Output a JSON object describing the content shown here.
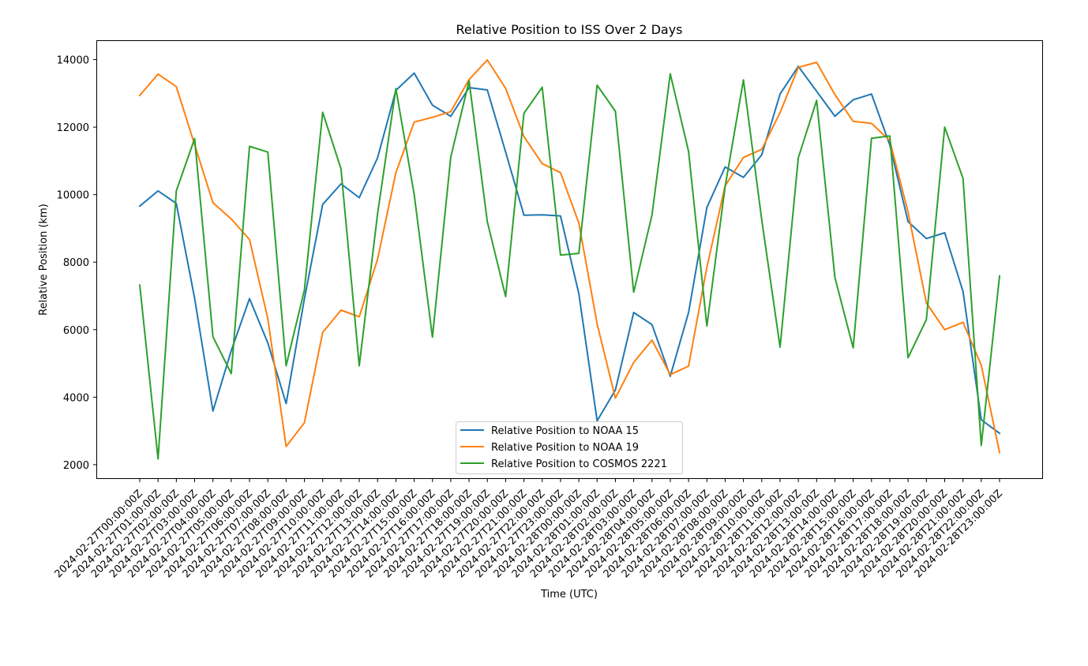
{
  "chart_data": {
    "type": "line",
    "title": "Relative Position to ISS Over 2 Days",
    "xlabel": "Time (UTC)",
    "ylabel": "Relative Position (km)",
    "ylim": [
      1600,
      14550
    ],
    "yticks": [
      2000,
      4000,
      6000,
      8000,
      10000,
      12000,
      14000
    ],
    "yticklabels": [
      "2000",
      "4000",
      "6000",
      "8000",
      "10000",
      "12000",
      "14000"
    ],
    "grid": false,
    "legend_position": "bottom-center",
    "categories": [
      "2024-02-27T00:00:00Z",
      "2024-02-27T01:00:00Z",
      "2024-02-27T02:00:00Z",
      "2024-02-27T03:00:00Z",
      "2024-02-27T04:00:00Z",
      "2024-02-27T05:00:00Z",
      "2024-02-27T06:00:00Z",
      "2024-02-27T07:00:00Z",
      "2024-02-27T08:00:00Z",
      "2024-02-27T09:00:00Z",
      "2024-02-27T10:00:00Z",
      "2024-02-27T11:00:00Z",
      "2024-02-27T12:00:00Z",
      "2024-02-27T13:00:00Z",
      "2024-02-27T14:00:00Z",
      "2024-02-27T15:00:00Z",
      "2024-02-27T16:00:00Z",
      "2024-02-27T17:00:00Z",
      "2024-02-27T18:00:00Z",
      "2024-02-27T19:00:00Z",
      "2024-02-27T20:00:00Z",
      "2024-02-27T21:00:00Z",
      "2024-02-27T22:00:00Z",
      "2024-02-27T23:00:00Z",
      "2024-02-28T00:00:00Z",
      "2024-02-28T01:00:00Z",
      "2024-02-28T02:00:00Z",
      "2024-02-28T03:00:00Z",
      "2024-02-28T04:00:00Z",
      "2024-02-28T05:00:00Z",
      "2024-02-28T06:00:00Z",
      "2024-02-28T07:00:00Z",
      "2024-02-28T08:00:00Z",
      "2024-02-28T09:00:00Z",
      "2024-02-28T10:00:00Z",
      "2024-02-28T11:00:00Z",
      "2024-02-28T12:00:00Z",
      "2024-02-28T13:00:00Z",
      "2024-02-28T14:00:00Z",
      "2024-02-28T15:00:00Z",
      "2024-02-28T16:00:00Z",
      "2024-02-28T17:00:00Z",
      "2024-02-28T18:00:00Z",
      "2024-02-28T19:00:00Z",
      "2024-02-28T20:00:00Z",
      "2024-02-28T21:00:00Z",
      "2024-02-28T22:00:00Z",
      "2024-02-28T23:00:00Z"
    ],
    "series": [
      {
        "name": "Relative Position to NOAA 15",
        "color": "#1f77b4",
        "values": [
          9660,
          10110,
          9740,
          6930,
          3590,
          5380,
          6920,
          5610,
          3810,
          6910,
          9710,
          10320,
          9910,
          11090,
          13090,
          13600,
          12650,
          12320,
          13170,
          13100,
          11260,
          9390,
          9400,
          9370,
          7070,
          3300,
          4210,
          6510,
          6150,
          4620,
          6510,
          9620,
          10820,
          10510,
          11180,
          12980,
          13800,
          13060,
          12320,
          12810,
          12980,
          11470,
          9200,
          8700,
          8870,
          7130,
          3330,
          2930
        ]
      },
      {
        "name": "Relative Position to NOAA 19",
        "color": "#ff7f0e",
        "values": [
          12940,
          13570,
          13200,
          11480,
          9760,
          9280,
          8670,
          6330,
          2540,
          3240,
          5920,
          6580,
          6380,
          8090,
          10650,
          12150,
          12290,
          12460,
          13410,
          13990,
          13150,
          11720,
          10920,
          10650,
          9160,
          6170,
          3970,
          5030,
          5690,
          4670,
          4920,
          7850,
          10260,
          11100,
          11340,
          12430,
          13770,
          13920,
          12960,
          12170,
          12110,
          11600,
          9480,
          6790,
          6000,
          6220,
          4950,
          2360
        ]
      },
      {
        "name": "Relative Position to COSMOS 2221",
        "color": "#2ca02c",
        "values": [
          7320,
          2170,
          10110,
          11660,
          5790,
          4700,
          11430,
          11260,
          4930,
          7170,
          12440,
          10760,
          4930,
          9430,
          13140,
          10000,
          5780,
          11110,
          13370,
          9200,
          6980,
          12410,
          13180,
          8210,
          8260,
          13240,
          12470,
          7110,
          9400,
          13580,
          11280,
          6110,
          10240,
          13400,
          9250,
          5480,
          11090,
          12790,
          7540,
          5460,
          11670,
          11740,
          5170,
          6300,
          12000,
          10480,
          2570,
          7590
        ]
      }
    ]
  }
}
